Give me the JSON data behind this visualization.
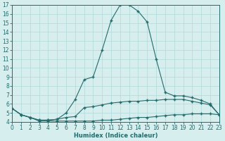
{
  "xlabel": "Humidex (Indice chaleur)",
  "bg_color": "#d7eeee",
  "grid_color": "#b0d8d8",
  "line_color": "#236b6b",
  "spine_color": "#236b6b",
  "xmin": 0,
  "xmax": 23,
  "ymin": 4,
  "ymax": 17,
  "xticks": [
    0,
    1,
    2,
    3,
    4,
    5,
    6,
    7,
    8,
    9,
    10,
    11,
    12,
    13,
    14,
    15,
    16,
    17,
    18,
    19,
    20,
    21,
    22,
    23
  ],
  "yticks": [
    4,
    5,
    6,
    7,
    8,
    9,
    10,
    11,
    12,
    13,
    14,
    15,
    16,
    17
  ],
  "line1_x": [
    0,
    1,
    2,
    3,
    4,
    5,
    6,
    7,
    8,
    9,
    10,
    11,
    12,
    13,
    14,
    15,
    16,
    17,
    18,
    19,
    20,
    21,
    22,
    23
  ],
  "line1_y": [
    5.5,
    4.8,
    4.5,
    4.1,
    4.1,
    4.1,
    4.1,
    4.1,
    4.1,
    4.1,
    4.2,
    4.2,
    4.3,
    4.4,
    4.5,
    4.5,
    4.6,
    4.7,
    4.8,
    4.8,
    4.9,
    4.9,
    4.9,
    4.8
  ],
  "line2_x": [
    0,
    1,
    2,
    3,
    4,
    5,
    6,
    7,
    8,
    9,
    10,
    11,
    12,
    13,
    14,
    15,
    16,
    17,
    18,
    19,
    20,
    21,
    22,
    23
  ],
  "line2_y": [
    5.5,
    4.8,
    4.5,
    4.2,
    4.2,
    4.3,
    4.5,
    4.6,
    5.6,
    5.7,
    5.9,
    6.1,
    6.2,
    6.3,
    6.3,
    6.4,
    6.4,
    6.5,
    6.5,
    6.5,
    6.3,
    6.1,
    5.9,
    4.8
  ],
  "line3_x": [
    0,
    1,
    2,
    3,
    4,
    5,
    6,
    7,
    8,
    9,
    10,
    11,
    12,
    13,
    14,
    15,
    16,
    17,
    18,
    19,
    20,
    21,
    22,
    23
  ],
  "line3_y": [
    5.5,
    4.8,
    4.5,
    4.2,
    4.2,
    4.3,
    5.0,
    6.5,
    8.7,
    9.0,
    12.0,
    15.3,
    17.0,
    17.0,
    16.3,
    15.1,
    11.0,
    7.3,
    6.9,
    6.9,
    6.7,
    6.4,
    6.0,
    4.8
  ],
  "tick_labelsize": 5.5,
  "xlabel_fontsize": 6.0,
  "marker_size": 2.0,
  "line_width": 0.8
}
